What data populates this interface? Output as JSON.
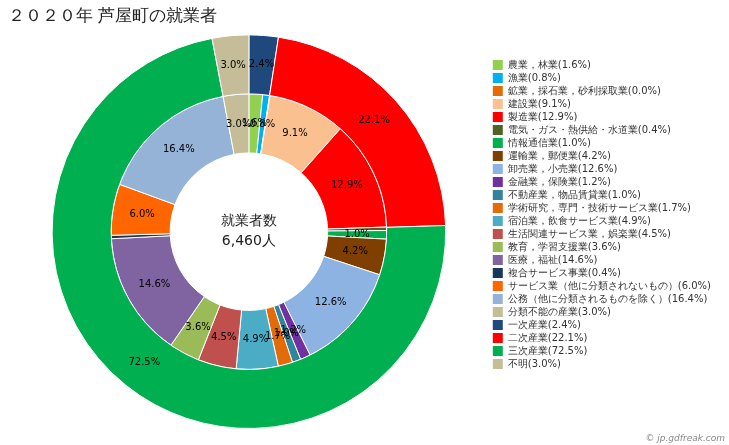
{
  "chart_data": {
    "type": "doughnut",
    "title": "２０２０年 芦屋町の就業者",
    "annotations": [
      "就業者数",
      "6,460人",
      "© jp.gdfreak.com"
    ],
    "legend": "right",
    "data_labels": true,
    "series": [
      {
        "categories": [
          "農業，林業(1.6%)",
          "漁業(0.8%)",
          "鉱業，採石業，砂利採取業(0.0%)",
          "建設業(9.1%)",
          "製造業(12.9%)",
          "電気・ガス・熱供給・水道業(0.4%)",
          "情報通信業(1.0%)",
          "運輸業，郵便業(4.2%)",
          "卸売業，小売業(12.6%)",
          "金融業，保険業(1.2%)",
          "不動産業，物品賃貸業(1.0%)",
          "学術研究，専門・技術サービス業(1.7%)",
          "宿泊業，飲食サービス業(4.9%)",
          "生活関連サービス業，娯楽業(4.5%)",
          "教育，学習支援業(3.6%)",
          "医療，福祉(14.6%)",
          "複合サービス事業(0.4%)",
          "サービス業（他に分類されないもの）(6.0%)",
          "公務（他に分類されるものを除く）(16.4%)",
          "分類不能の産業(3.0%)"
        ],
        "values": [
          1.6,
          0.8,
          0.05,
          9.1,
          12.9,
          0.4,
          1.0,
          4.2,
          12.6,
          1.2,
          1.0,
          1.7,
          4.9,
          4.5,
          3.6,
          14.6,
          0.4,
          6.0,
          16.4,
          3.0
        ],
        "value_labels": [
          "1.6%",
          "0.8%",
          null,
          "9.1%",
          "12.9%",
          null,
          "1.0%",
          "4.2%",
          "12.6%",
          "1.2%",
          "1.0%",
          "1.7%",
          "4.9%",
          "4.5%",
          "3.6%",
          "14.6%",
          null,
          "6.0%",
          "16.4%",
          "3.0%"
        ],
        "colors": [
          "#92d050",
          "#00b0f0",
          "#e36c09",
          "#fac090",
          "#ff0000",
          "#4f6228",
          "#00b050",
          "#7f3f00",
          "#8db3e2",
          "#7030a0",
          "#31849b",
          "#e36c09",
          "#4bacc6",
          "#c0504d",
          "#9bbb59",
          "#8064a2",
          "#17375e",
          "#ff6600",
          "#95b3d7",
          "#c4bd97"
        ]
      },
      {
        "categories": [
          "一次産業(2.4%)",
          "二次産業(22.1%)",
          "三次産業(72.5%)",
          "不明(3.0%)"
        ],
        "values": [
          2.4,
          22.1,
          72.5,
          3.0
        ],
        "value_labels": [
          "2.4%",
          "22.1%",
          "72.5%",
          "3.0%"
        ],
        "colors": [
          "#1f497d",
          "#ff0000",
          "#00b050",
          "#c4bd97"
        ]
      }
    ]
  }
}
